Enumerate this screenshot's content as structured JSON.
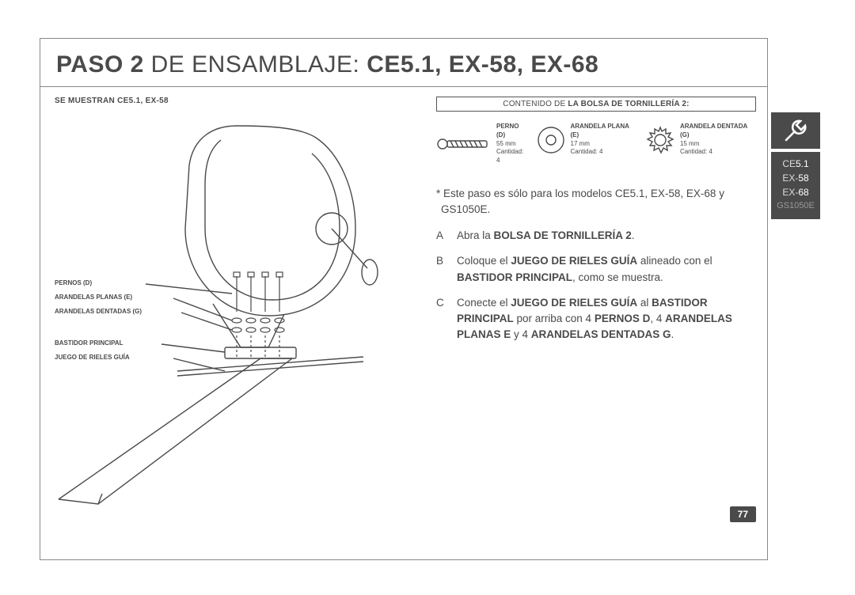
{
  "title": {
    "prefix_bold": "PASO 2",
    "mid": " DE ENSAMBLAJE: ",
    "suffix_bold": "CE5.1, EX-58, EX-68"
  },
  "left": {
    "header": "SE MUESTRAN CE5.1, EX-58",
    "labels": {
      "pernos": "PERNOS (D)",
      "arandelas_planas": "ARANDELAS PLANAS (E)",
      "arandelas_dentadas": "ARANDELAS DENTADAS (G)",
      "bastidor": "BASTIDOR PRINCIPAL",
      "rieles": "JUEGO DE RIELES GUÍA"
    }
  },
  "hardware": {
    "header_pre": "CONTENIDO DE ",
    "header_bold": "LA BOLSA DE TORNILLERÍA 2:",
    "items": [
      {
        "name": "PERNO (D)",
        "size": "55 mm",
        "qty": "Cantidad: 4"
      },
      {
        "name": "ARANDELA PLANA (E)",
        "size": "17 mm",
        "qty": "Cantidad: 4"
      },
      {
        "name": "ARANDELA DENTADA (G)",
        "size": "15 mm",
        "qty": "Cantidad: 4"
      }
    ]
  },
  "note": "* Este paso es sólo para los modelos CE5.1, EX-58, EX-68 y GS1050E.",
  "steps": [
    {
      "letter": "A",
      "html": "Abra la <b>BOLSA DE TORNILLERÍA 2</b>."
    },
    {
      "letter": "B",
      "html": "Coloque el <b>JUEGO DE RIELES GUÍA</b> alineado con el <b>BASTIDOR PRINCIPAL</b>, como se muestra."
    },
    {
      "letter": "C",
      "html": "Conecte el <b>JUEGO DE RIELES GUÍA</b> al <b>BASTIDOR PRINCIPAL</b> por arriba con 4 <b>PERNOS D</b>, 4 <b>ARANDELAS PLANAS E</b> y 4 <b>ARANDELAS DENTADAS G</b>."
    }
  ],
  "pagenum": "77",
  "sidebar_models": {
    "a_pre": "CE",
    "a_hl": "5.1",
    "b_pre": "EX-",
    "b_hl": "58",
    "c_pre": "EX-",
    "c_hl": "68",
    "d_pre": "GS",
    "d_hl": "1050E"
  },
  "colors": {
    "text": "#4a4a4a",
    "dark": "#4a4a4a",
    "border": "#888888"
  }
}
